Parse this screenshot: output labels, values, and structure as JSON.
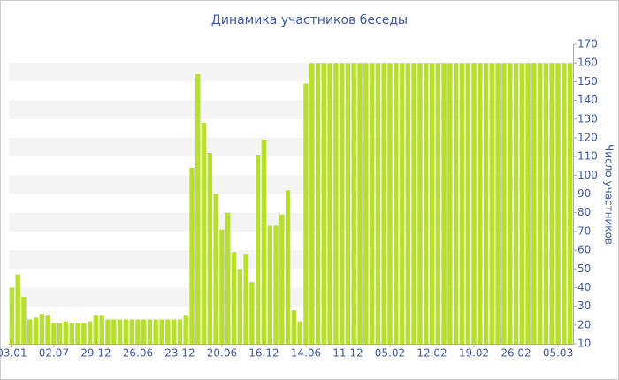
{
  "chart_data": {
    "type": "bar",
    "title": "Динамика участников беседы",
    "y_label": "Число участников",
    "categories": [
      "03.01",
      null,
      null,
      null,
      null,
      null,
      null,
      "02.07",
      null,
      null,
      null,
      null,
      null,
      null,
      "29.12",
      null,
      null,
      null,
      null,
      null,
      null,
      "26.06",
      null,
      null,
      null,
      null,
      null,
      null,
      "23.12",
      null,
      null,
      null,
      null,
      null,
      null,
      "20.06",
      null,
      null,
      null,
      null,
      null,
      null,
      "16.12",
      null,
      null,
      null,
      null,
      null,
      null,
      "14.06",
      null,
      null,
      null,
      null,
      null,
      null,
      "11.12",
      null,
      null,
      null,
      null,
      null,
      null,
      "05.02",
      null,
      null,
      null,
      null,
      null,
      null,
      "12.02",
      null,
      null,
      null,
      null,
      null,
      null,
      "19.02",
      null,
      null,
      null,
      null,
      null,
      null,
      "26.02",
      null,
      null,
      null,
      null,
      null,
      null,
      "05.03",
      null,
      null
    ],
    "values": [
      40,
      47,
      35,
      23,
      24,
      26,
      25,
      21,
      21,
      22,
      21,
      21,
      21,
      22,
      25,
      25,
      23,
      23,
      23,
      23,
      23,
      23,
      23,
      23,
      23,
      23,
      23,
      23,
      23,
      25,
      104,
      154,
      128,
      112,
      90,
      71,
      80,
      59,
      50,
      58,
      43,
      111,
      119,
      73,
      73,
      79,
      92,
      28,
      22,
      149,
      160,
      160,
      160,
      160,
      160,
      160,
      160,
      160,
      160,
      160,
      160,
      160,
      160,
      160,
      160,
      160,
      160,
      160,
      160,
      160,
      160,
      160,
      160,
      160,
      160,
      160,
      160,
      160,
      160,
      160,
      160,
      160,
      160,
      160,
      160,
      160,
      160,
      160,
      160,
      160,
      160,
      160,
      160,
      160
    ],
    "color": "#b7df2e",
    "ylim": [
      10,
      170
    ],
    "yticks": [
      10,
      20,
      30,
      40,
      50,
      60,
      70,
      80,
      90,
      100,
      110,
      120,
      130,
      140,
      150,
      160,
      170
    ],
    "grid": true
  }
}
